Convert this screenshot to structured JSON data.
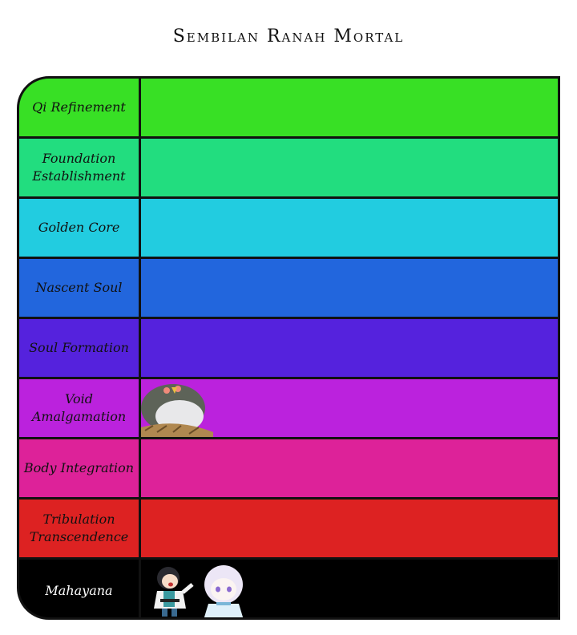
{
  "title": "Sembilan Ranah Mortal",
  "tiers": [
    {
      "label": "Qi Refinement",
      "color": "#38e025",
      "items": []
    },
    {
      "label": "Foundation Establishment",
      "color": "#22dd7f",
      "items": []
    },
    {
      "label": "Golden Core",
      "color": "#22cce0",
      "items": []
    },
    {
      "label": "Nascent Soul",
      "color": "#2266dd",
      "items": []
    },
    {
      "label": "Soul Formation",
      "color": "#5522dd",
      "items": []
    },
    {
      "label": "Void Amalgamation",
      "color": "#bb22dd",
      "items": [
        "fat-bird-in-nest-image"
      ]
    },
    {
      "label": "Body Integration",
      "color": "#dd2299",
      "items": []
    },
    {
      "label": "Tribulation Transcendence",
      "color": "#dd2222",
      "items": []
    },
    {
      "label": "Mahayana",
      "color": "#000000",
      "items": [
        "chibi-dark-haired-cultivator-image",
        "chibi-white-haired-girl-image"
      ]
    }
  ]
}
